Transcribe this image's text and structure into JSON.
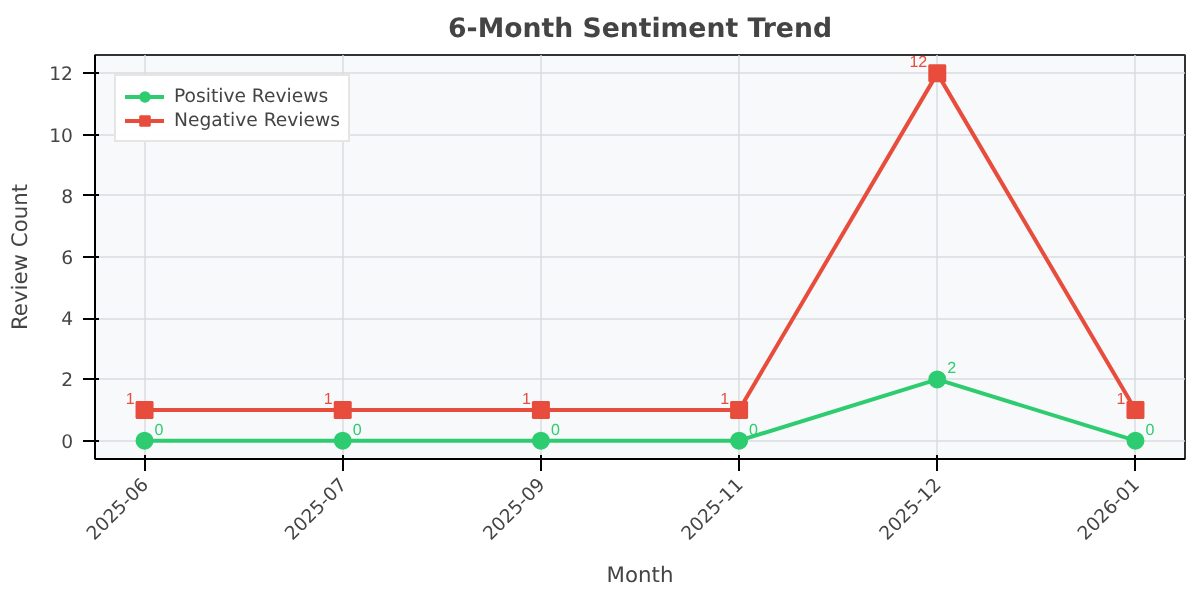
{
  "chart_data": {
    "type": "line",
    "title": "6-Month Sentiment Trend",
    "xlabel": "Month",
    "ylabel": "Review Count",
    "categories": [
      "2025-06",
      "2025-07",
      "2025-09",
      "2025-11",
      "2025-12",
      "2026-01"
    ],
    "series": [
      {
        "name": "Positive Reviews",
        "color": "#2ecc71",
        "marker": "circle",
        "values": [
          0,
          0,
          0,
          0,
          2,
          0
        ]
      },
      {
        "name": "Negative Reviews",
        "color": "#e74c3c",
        "marker": "square",
        "values": [
          1,
          1,
          1,
          1,
          12,
          1
        ]
      }
    ],
    "ylim": [
      -0.6,
      12.6
    ],
    "yticks": [
      0,
      2,
      4,
      6,
      8,
      10,
      12
    ],
    "grid": true,
    "legend": "top left",
    "data_labels": true,
    "line_style": "solid"
  }
}
